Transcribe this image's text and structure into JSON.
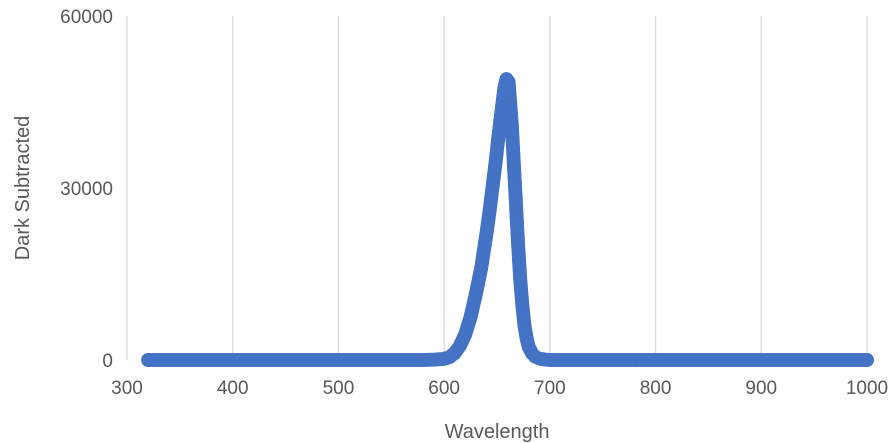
{
  "chart_data": {
    "type": "scatter",
    "title": "",
    "xlabel": "Wavelength",
    "ylabel": "Dark Subtracted",
    "xlim": [
      300,
      1000
    ],
    "ylim": [
      0,
      60000
    ],
    "x_ticks": [
      300,
      400,
      500,
      600,
      700,
      800,
      900,
      1000
    ],
    "y_ticks": [
      0,
      30000,
      60000
    ],
    "x_tick_labels": [
      "300",
      "400",
      "500",
      "600",
      "700",
      "800",
      "900",
      "1000"
    ],
    "y_tick_labels": [
      "0",
      "30000",
      "60000"
    ],
    "grid": {
      "vertical": true,
      "horizontal": false
    },
    "legend": "none",
    "marker_color": "#4472c4",
    "series": [
      {
        "x": [
          320,
          340,
          360,
          380,
          400,
          420,
          440,
          460,
          480,
          500,
          520,
          540,
          560,
          580,
          590,
          600,
          605,
          610,
          615,
          620,
          625,
          630,
          635,
          640,
          643,
          646,
          649,
          652,
          655,
          657,
          659,
          661,
          662,
          664,
          666,
          668,
          670,
          672,
          674,
          676,
          678,
          680,
          683,
          686,
          690,
          695,
          700,
          710,
          720,
          740,
          760,
          780,
          800,
          820,
          840,
          860,
          880,
          900,
          920,
          940,
          960,
          980,
          1000
        ],
        "y": [
          0,
          0,
          0,
          0,
          0,
          0,
          0,
          0,
          0,
          0,
          0,
          0,
          0,
          0,
          50,
          200,
          500,
          1200,
          2500,
          4500,
          7500,
          11500,
          16000,
          22000,
          26000,
          30500,
          35000,
          40000,
          44500,
          47500,
          49000,
          48500,
          46000,
          41000,
          34000,
          27000,
          20000,
          14000,
          9500,
          6000,
          3800,
          2300,
          1200,
          600,
          250,
          80,
          0,
          0,
          0,
          0,
          0,
          0,
          0,
          0,
          0,
          0,
          0,
          0,
          0,
          0,
          0,
          0,
          0
        ]
      }
    ]
  }
}
